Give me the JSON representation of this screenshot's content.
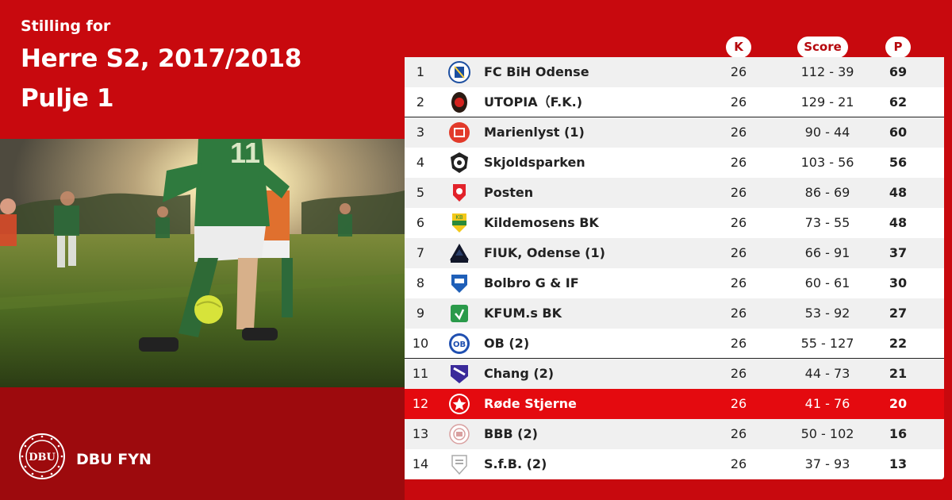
{
  "header": {
    "subtitle": "Stilling for",
    "title_line1": "Herre S2, 2017/2018",
    "title_line2": "Pulje 1"
  },
  "brand": {
    "name": "DBU FYN"
  },
  "columns": {
    "k": "K",
    "score": "Score",
    "p": "P"
  },
  "colors": {
    "brand_red": "#c8090e",
    "dark_red": "#9d0a0d",
    "highlight_red": "#e40a0f"
  },
  "rows": [
    {
      "rank": "1",
      "team": "FC BiH Odense",
      "k": "26",
      "score": "112 - 39",
      "p": "69",
      "logo": "fc-bih-odense-logo",
      "divider_after": false,
      "highlight": false
    },
    {
      "rank": "2",
      "team": "UTOPIA（F.K.)",
      "k": "26",
      "score": "129 - 21",
      "p": "62",
      "logo": "utopia-logo",
      "divider_after": true,
      "highlight": false
    },
    {
      "rank": "3",
      "team": "Marienlyst (1)",
      "k": "26",
      "score": "90 - 44",
      "p": "60",
      "logo": "marienlyst-logo",
      "divider_after": false,
      "highlight": false
    },
    {
      "rank": "4",
      "team": "Skjoldsparken",
      "k": "26",
      "score": "103 - 56",
      "p": "56",
      "logo": "skjoldsparken-logo",
      "divider_after": false,
      "highlight": false
    },
    {
      "rank": "5",
      "team": "Posten",
      "k": "26",
      "score": "86 - 69",
      "p": "48",
      "logo": "posten-logo",
      "divider_after": false,
      "highlight": false
    },
    {
      "rank": "6",
      "team": "Kildemosens BK",
      "k": "26",
      "score": "73 - 55",
      "p": "48",
      "logo": "kildemosens-bk-logo",
      "divider_after": false,
      "highlight": false
    },
    {
      "rank": "7",
      "team": "FIUK, Odense (1)",
      "k": "26",
      "score": "66 - 91",
      "p": "37",
      "logo": "fiuk-logo",
      "divider_after": false,
      "highlight": false
    },
    {
      "rank": "8",
      "team": "Bolbro G & IF",
      "k": "26",
      "score": "60 - 61",
      "p": "30",
      "logo": "bolbro-logo",
      "divider_after": false,
      "highlight": false
    },
    {
      "rank": "9",
      "team": "KFUM.s BK",
      "k": "26",
      "score": "53 - 92",
      "p": "27",
      "logo": "kfum-logo",
      "divider_after": false,
      "highlight": false
    },
    {
      "rank": "10",
      "team": "OB (2)",
      "k": "26",
      "score": "55 - 127",
      "p": "22",
      "logo": "ob-logo",
      "divider_after": true,
      "highlight": false
    },
    {
      "rank": "11",
      "team": "Chang  (2)",
      "k": "26",
      "score": "44 - 73",
      "p": "21",
      "logo": "chang-logo",
      "divider_after": false,
      "highlight": false
    },
    {
      "rank": "12",
      "team": "Røde Stjerne",
      "k": "26",
      "score": "41 - 76",
      "p": "20",
      "logo": "rode-stjerne-logo",
      "divider_after": false,
      "highlight": true
    },
    {
      "rank": "13",
      "team": "BBB (2)",
      "k": "26",
      "score": "50 - 102",
      "p": "16",
      "logo": "bbb-logo",
      "divider_after": false,
      "highlight": false
    },
    {
      "rank": "14",
      "team": "S.f.B. (2)",
      "k": "26",
      "score": "37 - 93",
      "p": "13",
      "logo": "sfb-logo",
      "divider_after": false,
      "highlight": false
    }
  ]
}
